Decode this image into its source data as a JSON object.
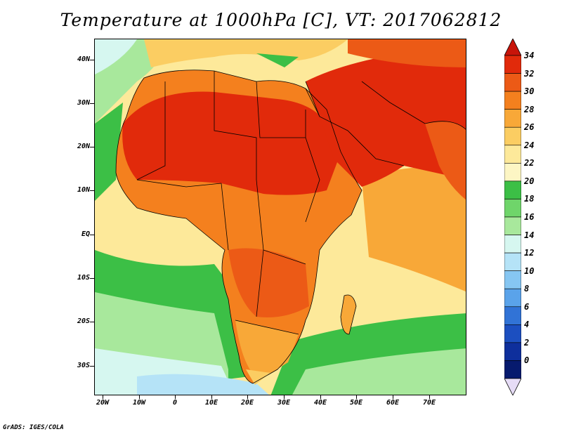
{
  "title": "Temperature at 1000hPa [C], VT: 2017062812",
  "credit": "GrADS: IGES/COLA",
  "map": {
    "region": "Africa and Middle East",
    "variable": "Temperature at 1000hPa",
    "unit": "C",
    "lon_range": [
      -23,
      80
    ],
    "lat_range": [
      -36,
      45
    ],
    "lat_labels": [
      "40N",
      "30N",
      "20N",
      "10N",
      "EQ",
      "10S",
      "20S",
      "30S"
    ],
    "lon_labels": [
      "20W",
      "10W",
      "0",
      "10E",
      "20E",
      "30E",
      "40E",
      "50E",
      "60E",
      "70E"
    ]
  },
  "colorbar": {
    "levels": [
      "34",
      "32",
      "30",
      "28",
      "26",
      "24",
      "22",
      "20",
      "18",
      "16",
      "14",
      "12",
      "10",
      "8",
      "6",
      "4",
      "2",
      "0"
    ],
    "colors": [
      "#e12a0b",
      "#ec5a16",
      "#f4801e",
      "#f8a838",
      "#fbcd62",
      "#fde99a",
      "#fdf6c4",
      "#3cbf46",
      "#6fd56a",
      "#a8e89c",
      "#d6f7f0",
      "#b5e3f7",
      "#86c6f2",
      "#5aa3ea",
      "#3173d6",
      "#1c4fc0",
      "#0e2f9c",
      "#061a6e"
    ],
    "top_arrow_color": "#c8140a",
    "bottom_arrow_color": "#e6dcf6"
  }
}
